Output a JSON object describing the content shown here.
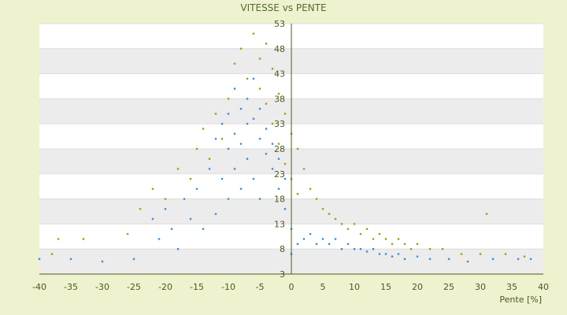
{
  "chart_data": {
    "type": "scatter",
    "title": "VITESSE vs PENTE",
    "xlabel": "Pente [%]",
    "ylabel": "",
    "xlim": [
      -40,
      40
    ],
    "ylim": [
      3,
      53
    ],
    "x_ticks": [
      -40,
      -35,
      -30,
      -25,
      -20,
      -15,
      -10,
      -5,
      0,
      5,
      10,
      15,
      20,
      25,
      30,
      35,
      40
    ],
    "y_ticks": [
      3,
      8,
      13,
      18,
      23,
      28,
      33,
      38,
      43,
      48,
      53
    ],
    "grid": true,
    "legend": "none",
    "colors": {
      "background": "#eef2cf",
      "plot_band_light": "#ffffff",
      "plot_band_dark": "#ececec",
      "axis": "#4d5a1e",
      "series_1": "#3d8fd6",
      "series_2": "#9aa21a"
    },
    "series": [
      {
        "color": "#3d8fd6",
        "points": [
          [
            -40,
            6
          ],
          [
            -35,
            6
          ],
          [
            -30,
            5.5
          ],
          [
            -25,
            6
          ],
          [
            -22,
            14
          ],
          [
            -21,
            10
          ],
          [
            -20,
            16
          ],
          [
            -19,
            12
          ],
          [
            -18,
            8
          ],
          [
            -17,
            18
          ],
          [
            -16,
            14
          ],
          [
            -15,
            20
          ],
          [
            -14,
            12
          ],
          [
            -13,
            24
          ],
          [
            -12,
            30
          ],
          [
            -12,
            15
          ],
          [
            -11,
            33
          ],
          [
            -11,
            22
          ],
          [
            -10,
            35
          ],
          [
            -10,
            28
          ],
          [
            -10,
            18
          ],
          [
            -9,
            40
          ],
          [
            -9,
            31
          ],
          [
            -9,
            24
          ],
          [
            -8,
            36
          ],
          [
            -8,
            29
          ],
          [
            -8,
            20
          ],
          [
            -7,
            38
          ],
          [
            -7,
            33
          ],
          [
            -7,
            26
          ],
          [
            -6,
            42
          ],
          [
            -6,
            34
          ],
          [
            -6,
            22
          ],
          [
            -5,
            36
          ],
          [
            -5,
            30
          ],
          [
            -5,
            18
          ],
          [
            -4,
            32
          ],
          [
            -4,
            27
          ],
          [
            -3,
            29
          ],
          [
            -3,
            24
          ],
          [
            -2,
            26
          ],
          [
            -2,
            20
          ],
          [
            -1,
            22
          ],
          [
            -1,
            16
          ],
          [
            0,
            12
          ],
          [
            0,
            7
          ],
          [
            1,
            9
          ],
          [
            2,
            10
          ],
          [
            3,
            11
          ],
          [
            4,
            9
          ],
          [
            5,
            10
          ],
          [
            6,
            9
          ],
          [
            7,
            10
          ],
          [
            8,
            8
          ],
          [
            9,
            9
          ],
          [
            10,
            8
          ],
          [
            11,
            8
          ],
          [
            12,
            7.5
          ],
          [
            13,
            8
          ],
          [
            14,
            7
          ],
          [
            15,
            7
          ],
          [
            16,
            6.5
          ],
          [
            17,
            7
          ],
          [
            18,
            6
          ],
          [
            20,
            6.5
          ],
          [
            22,
            6
          ],
          [
            25,
            6
          ],
          [
            28,
            5.5
          ],
          [
            32,
            6
          ],
          [
            36,
            6
          ],
          [
            38,
            6
          ]
        ]
      },
      {
        "color": "#9aa21a",
        "points": [
          [
            -38,
            7
          ],
          [
            -37,
            10
          ],
          [
            -33,
            10
          ],
          [
            -26,
            11
          ],
          [
            -24,
            16
          ],
          [
            -22,
            20
          ],
          [
            -20,
            18
          ],
          [
            -18,
            24
          ],
          [
            -16,
            22
          ],
          [
            -15,
            28
          ],
          [
            -14,
            32
          ],
          [
            -13,
            26
          ],
          [
            -12,
            35
          ],
          [
            -11,
            30
          ],
          [
            -10,
            38
          ],
          [
            -9,
            45
          ],
          [
            -8,
            48
          ],
          [
            -7,
            42
          ],
          [
            -6,
            51
          ],
          [
            -5,
            46
          ],
          [
            -5,
            40
          ],
          [
            -4,
            49
          ],
          [
            -4,
            37
          ],
          [
            -3,
            44
          ],
          [
            -3,
            33
          ],
          [
            -2,
            39
          ],
          [
            -2,
            29
          ],
          [
            -1,
            35
          ],
          [
            -1,
            25
          ],
          [
            0,
            31
          ],
          [
            0,
            22
          ],
          [
            1,
            28
          ],
          [
            1,
            19
          ],
          [
            2,
            24
          ],
          [
            3,
            20
          ],
          [
            4,
            18
          ],
          [
            5,
            16
          ],
          [
            6,
            15
          ],
          [
            7,
            14
          ],
          [
            8,
            13
          ],
          [
            9,
            12
          ],
          [
            10,
            13
          ],
          [
            11,
            11
          ],
          [
            12,
            12
          ],
          [
            13,
            10
          ],
          [
            14,
            11
          ],
          [
            15,
            10
          ],
          [
            16,
            9
          ],
          [
            17,
            10
          ],
          [
            18,
            9
          ],
          [
            19,
            8
          ],
          [
            20,
            9
          ],
          [
            22,
            8
          ],
          [
            24,
            8
          ],
          [
            27,
            7
          ],
          [
            30,
            7
          ],
          [
            31,
            15
          ],
          [
            34,
            7
          ],
          [
            37,
            6.5
          ]
        ]
      }
    ]
  }
}
